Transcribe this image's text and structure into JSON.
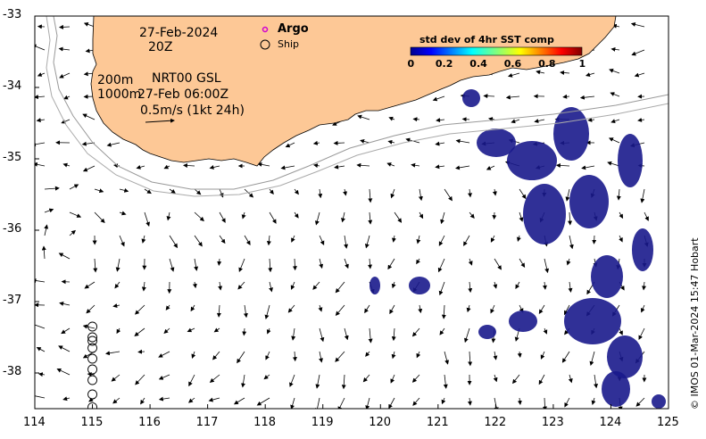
{
  "map": {
    "date": "27-Feb-2024",
    "time": "20Z",
    "depth_line_1": "200m",
    "depth_line_2": "1000m",
    "source": "NRT00 GSL",
    "source_time": "27-Feb 06:00Z",
    "scale_label": "0.5m/s (1kt 24h)",
    "legend": {
      "argo_label": "Argo",
      "ship_label": "Ship"
    },
    "colorbar": {
      "title": "std dev of 4hr SST comp",
      "ticks": [
        "0",
        "0.2",
        "0.4",
        "0.6",
        "0.8",
        "1"
      ],
      "colormap": "jet"
    },
    "credit": "© IMOS 01-Mar-2024 15:47 Hobart",
    "x_ticks": [
      "114",
      "115",
      "116",
      "117",
      "118",
      "119",
      "120",
      "121",
      "122",
      "123",
      "124",
      "125"
    ],
    "y_ticks": [
      "-33",
      "-34",
      "-35",
      "-36",
      "-37",
      "-38"
    ],
    "lon_range": [
      114,
      125
    ],
    "lat_range": [
      -38.5,
      -33
    ],
    "colors": {
      "land": "#fdc896",
      "coast": "#000000",
      "isobath": "#999999",
      "high_variance": "#1a1a8c"
    },
    "ship_positions": [
      {
        "lon": 115.0,
        "lat": -37.35
      },
      {
        "lon": 115.0,
        "lat": -37.5
      },
      {
        "lon": 115.0,
        "lat": -37.55
      },
      {
        "lon": 115.0,
        "lat": -37.65
      },
      {
        "lon": 115.0,
        "lat": -37.8
      },
      {
        "lon": 115.0,
        "lat": -37.95
      },
      {
        "lon": 115.0,
        "lat": -38.1
      },
      {
        "lon": 115.0,
        "lat": -38.3
      },
      {
        "lon": 115.0,
        "lat": -38.48
      }
    ]
  }
}
